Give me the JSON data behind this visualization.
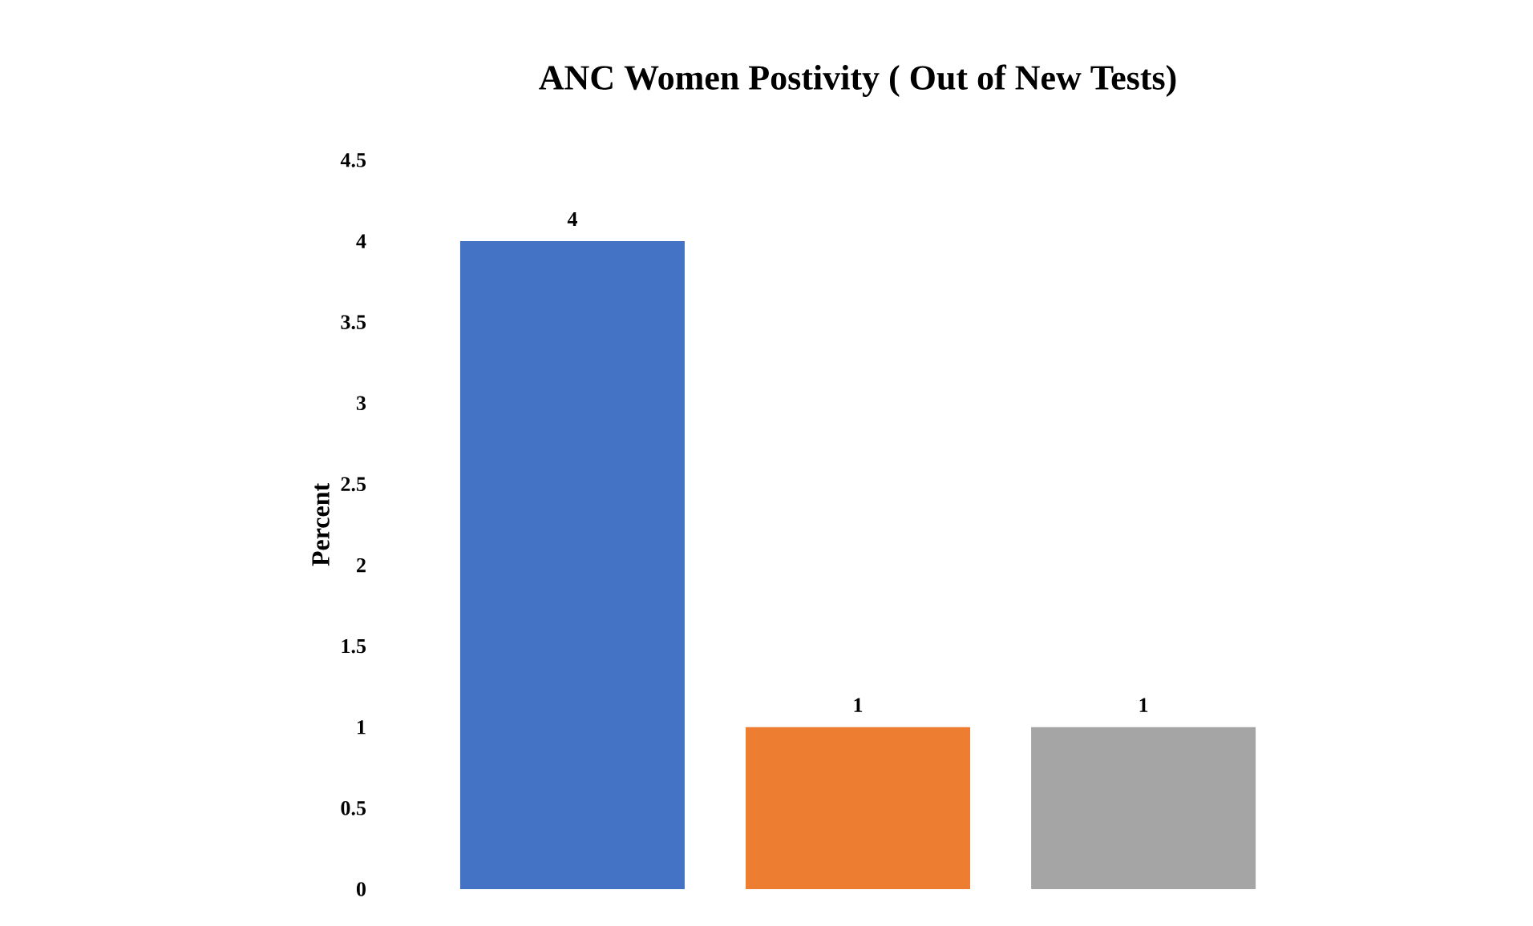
{
  "chart_data": {
    "type": "bar",
    "title": "ANC Women Postivity ( Out of New Tests)",
    "ylabel": "Percent",
    "categories": [
      null,
      null,
      null
    ],
    "values": [
      4,
      1,
      1
    ],
    "colors": [
      "#4472c4",
      "#ed7d31",
      "#a5a5a5"
    ],
    "ylim": [
      0,
      4.5
    ],
    "yticks": [
      0,
      0.5,
      1,
      1.5,
      2,
      2.5,
      3,
      3.5,
      4,
      4.5
    ],
    "data_labels": true
  }
}
